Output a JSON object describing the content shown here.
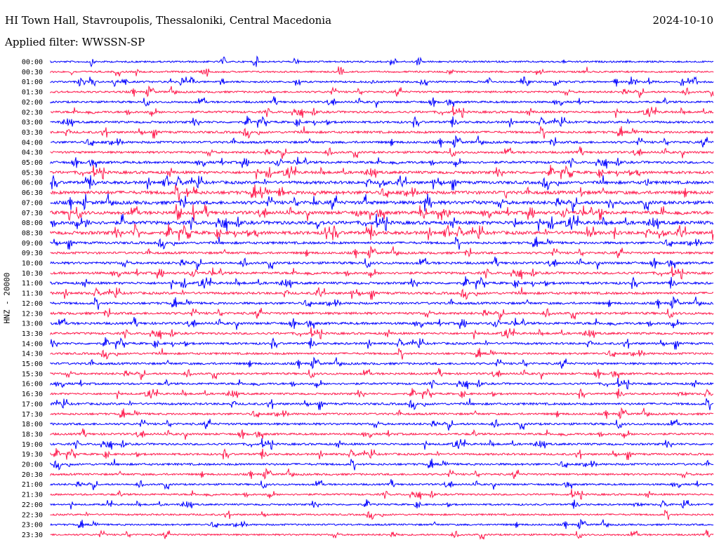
{
  "header": {
    "station": "HI Town Hall, Stavroupolis, Thessaloniki, Central Macedonia",
    "date": "2024-10-10",
    "filter": "Applied filter: WWSSN-SP"
  },
  "chart_data": {
    "type": "line",
    "title": "HI Town Hall, Stavroupolis, Thessaloniki, Central Macedonia",
    "ylabel": "HNZ - 20000",
    "xlabel": "",
    "row_labels": [
      "00:00",
      "00:30",
      "01:00",
      "01:30",
      "02:00",
      "02:30",
      "03:00",
      "03:30",
      "04:00",
      "04:30",
      "05:00",
      "05:30",
      "06:00",
      "06:30",
      "07:00",
      "07:30",
      "08:00",
      "08:30",
      "09:00",
      "09:30",
      "10:00",
      "10:30",
      "11:00",
      "11:30",
      "12:00",
      "12:30",
      "13:00",
      "13:30",
      "14:00",
      "14:30",
      "15:00",
      "15:30",
      "16:00",
      "16:30",
      "17:00",
      "17:30",
      "18:00",
      "18:30",
      "19:00",
      "19:30",
      "20:00",
      "20:30",
      "21:00",
      "21:30",
      "22:00",
      "22:30",
      "23:00",
      "23:30"
    ],
    "colors": {
      "even_rows": "#0000ff",
      "odd_rows": "#ff1a4d"
    },
    "grid": false,
    "activity_level": [
      0.25,
      0.25,
      0.3,
      0.35,
      0.4,
      0.45,
      0.45,
      0.5,
      0.5,
      0.45,
      0.55,
      0.7,
      0.8,
      0.95,
      1.0,
      0.95,
      1.0,
      0.95,
      0.55,
      0.5,
      0.55,
      0.55,
      0.55,
      0.55,
      0.5,
      0.55,
      0.55,
      0.45,
      0.45,
      0.4,
      0.45,
      0.4,
      0.4,
      0.35,
      0.45,
      0.4,
      0.45,
      0.4,
      0.4,
      0.4,
      0.4,
      0.35,
      0.3,
      0.3,
      0.25,
      0.25,
      0.25,
      0.25
    ]
  }
}
